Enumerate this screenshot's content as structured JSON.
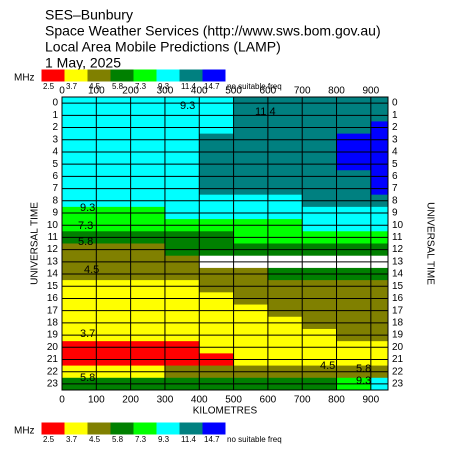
{
  "chart_data": {
    "type": "contour",
    "title": [
      "SES–Bunbury",
      "Space Weather Services (http://www.sws.bom.gov.au)",
      "Local Area Mobile Predictions (LAMP)",
      "1 May, 2025"
    ],
    "unit_label": "MHz",
    "levels": [
      2.5,
      3.7,
      4.5,
      5.8,
      7.3,
      9.3,
      11.4,
      14.7
    ],
    "colors": [
      "#ff0000",
      "#ffff00",
      "#808000",
      "#008000",
      "#00ff00",
      "#00ffff",
      "#008080",
      "#0000ff",
      "#ffffff"
    ],
    "no_value_label": "no suitable freq",
    "xlabel": "KILOMETRES",
    "ylabel": "UNIVERSAL TIME",
    "xlim": [
      0,
      950
    ],
    "ylim": [
      -0.5,
      23.5
    ],
    "xticks": [
      0,
      100,
      200,
      300,
      400,
      500,
      600,
      700,
      800,
      900
    ],
    "yticks": [
      0,
      1,
      2,
      3,
      4,
      5,
      6,
      7,
      8,
      9,
      10,
      11,
      12,
      13,
      14,
      15,
      16,
      17,
      18,
      19,
      20,
      21,
      22,
      23
    ],
    "x": [
      0,
      100,
      200,
      300,
      400,
      500,
      600,
      700,
      800,
      900
    ],
    "y": [
      0,
      1,
      2,
      3,
      4,
      5,
      6,
      7,
      8,
      9,
      10,
      11,
      12,
      13,
      14,
      15,
      16,
      17,
      18,
      19,
      20,
      21,
      22,
      23
    ],
    "z": [
      [
        10,
        10,
        10,
        10,
        10,
        12,
        12,
        12,
        12,
        12
      ],
      [
        10,
        10,
        10,
        10,
        10,
        12,
        12,
        12,
        12,
        12
      ],
      [
        10,
        10,
        10,
        10,
        10,
        12,
        12,
        12,
        12,
        15
      ],
      [
        10,
        10,
        10,
        10,
        12,
        12,
        12,
        12,
        15,
        15
      ],
      [
        10,
        10,
        10,
        10,
        12,
        12,
        12,
        12,
        15,
        15
      ],
      [
        10,
        10,
        10,
        10,
        12,
        12,
        12,
        12,
        15,
        15
      ],
      [
        10,
        10,
        10,
        10,
        12,
        12,
        12,
        12,
        12,
        15
      ],
      [
        10,
        10,
        10,
        10,
        12,
        12,
        12,
        12,
        12,
        15
      ],
      [
        10,
        10,
        10,
        10,
        10,
        10,
        10,
        12,
        12,
        12
      ],
      [
        8,
        8,
        8,
        10,
        10,
        10,
        10,
        10,
        10,
        10
      ],
      [
        8,
        8,
        8,
        8,
        8,
        8,
        8,
        10,
        10,
        10
      ],
      [
        6.5,
        6.5,
        6.5,
        6.5,
        6.5,
        8,
        8,
        8,
        8,
        8
      ],
      [
        5,
        5,
        5,
        6.5,
        6.5,
        6.5,
        6.5,
        6.5,
        6.5,
        6.5
      ],
      [
        5,
        5,
        5,
        5,
        null,
        null,
        null,
        null,
        null,
        null
      ],
      [
        5,
        5,
        5,
        5,
        5,
        5,
        6.5,
        6.5,
        6.5,
        6.5
      ],
      [
        4,
        4,
        4,
        4,
        5,
        5,
        5,
        5,
        5,
        5
      ],
      [
        4,
        4,
        4,
        4,
        4,
        5,
        5,
        5,
        5,
        5
      ],
      [
        4,
        4,
        4,
        4,
        4,
        4,
        5,
        5,
        5,
        5
      ],
      [
        4,
        4,
        4,
        4,
        4,
        4,
        4,
        5,
        5,
        5
      ],
      [
        4,
        4,
        4,
        4,
        4,
        4,
        4,
        4,
        5,
        5
      ],
      [
        3,
        3,
        3,
        3,
        4,
        4,
        4,
        4,
        4,
        4
      ],
      [
        3,
        3,
        3,
        3,
        3,
        4,
        4,
        4,
        4,
        4
      ],
      [
        4,
        4,
        4,
        5,
        5,
        5,
        5,
        5,
        5,
        5
      ],
      [
        6.5,
        6.5,
        6.5,
        6.5,
        6.5,
        6.5,
        6.5,
        6.5,
        8,
        10
      ]
    ],
    "annotations": [
      "9.3",
      "11.4",
      "9.3",
      "7.3",
      "5.8",
      "4.5",
      "3.7",
      "5.8",
      "4.5",
      "5.8",
      "9.3"
    ]
  }
}
